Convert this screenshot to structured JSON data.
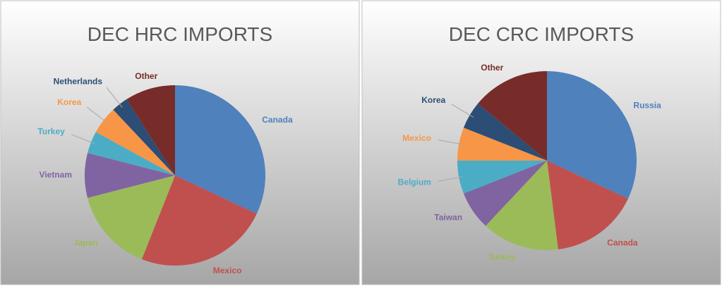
{
  "chart_data": [
    {
      "type": "pie",
      "title": "DEC HRC IMPORTS",
      "categories": [
        "Canada",
        "Mexico",
        "Japan",
        "Vietnam",
        "Turkey",
        "Korea",
        "Netherlands",
        "Other"
      ],
      "values": [
        32,
        24,
        15,
        8,
        4,
        5,
        3,
        9
      ],
      "colors": [
        "#4f81bd",
        "#c0504d",
        "#9bbb59",
        "#8064a2",
        "#4bacc6",
        "#f79646",
        "#2c4d75",
        "#772c2a"
      ]
    },
    {
      "type": "pie",
      "title": "DEC CRC IMPORTS",
      "categories": [
        "Russia",
        "Canada",
        "Turkey",
        "Taiwan",
        "Belgium",
        "Mexico",
        "Korea",
        "Other"
      ],
      "values": [
        32,
        16,
        14,
        7,
        6,
        6,
        5,
        14
      ],
      "colors": [
        "#4f81bd",
        "#c0504d",
        "#9bbb59",
        "#8064a2",
        "#4bacc6",
        "#f79646",
        "#2c4d75",
        "#772c2a"
      ]
    }
  ]
}
